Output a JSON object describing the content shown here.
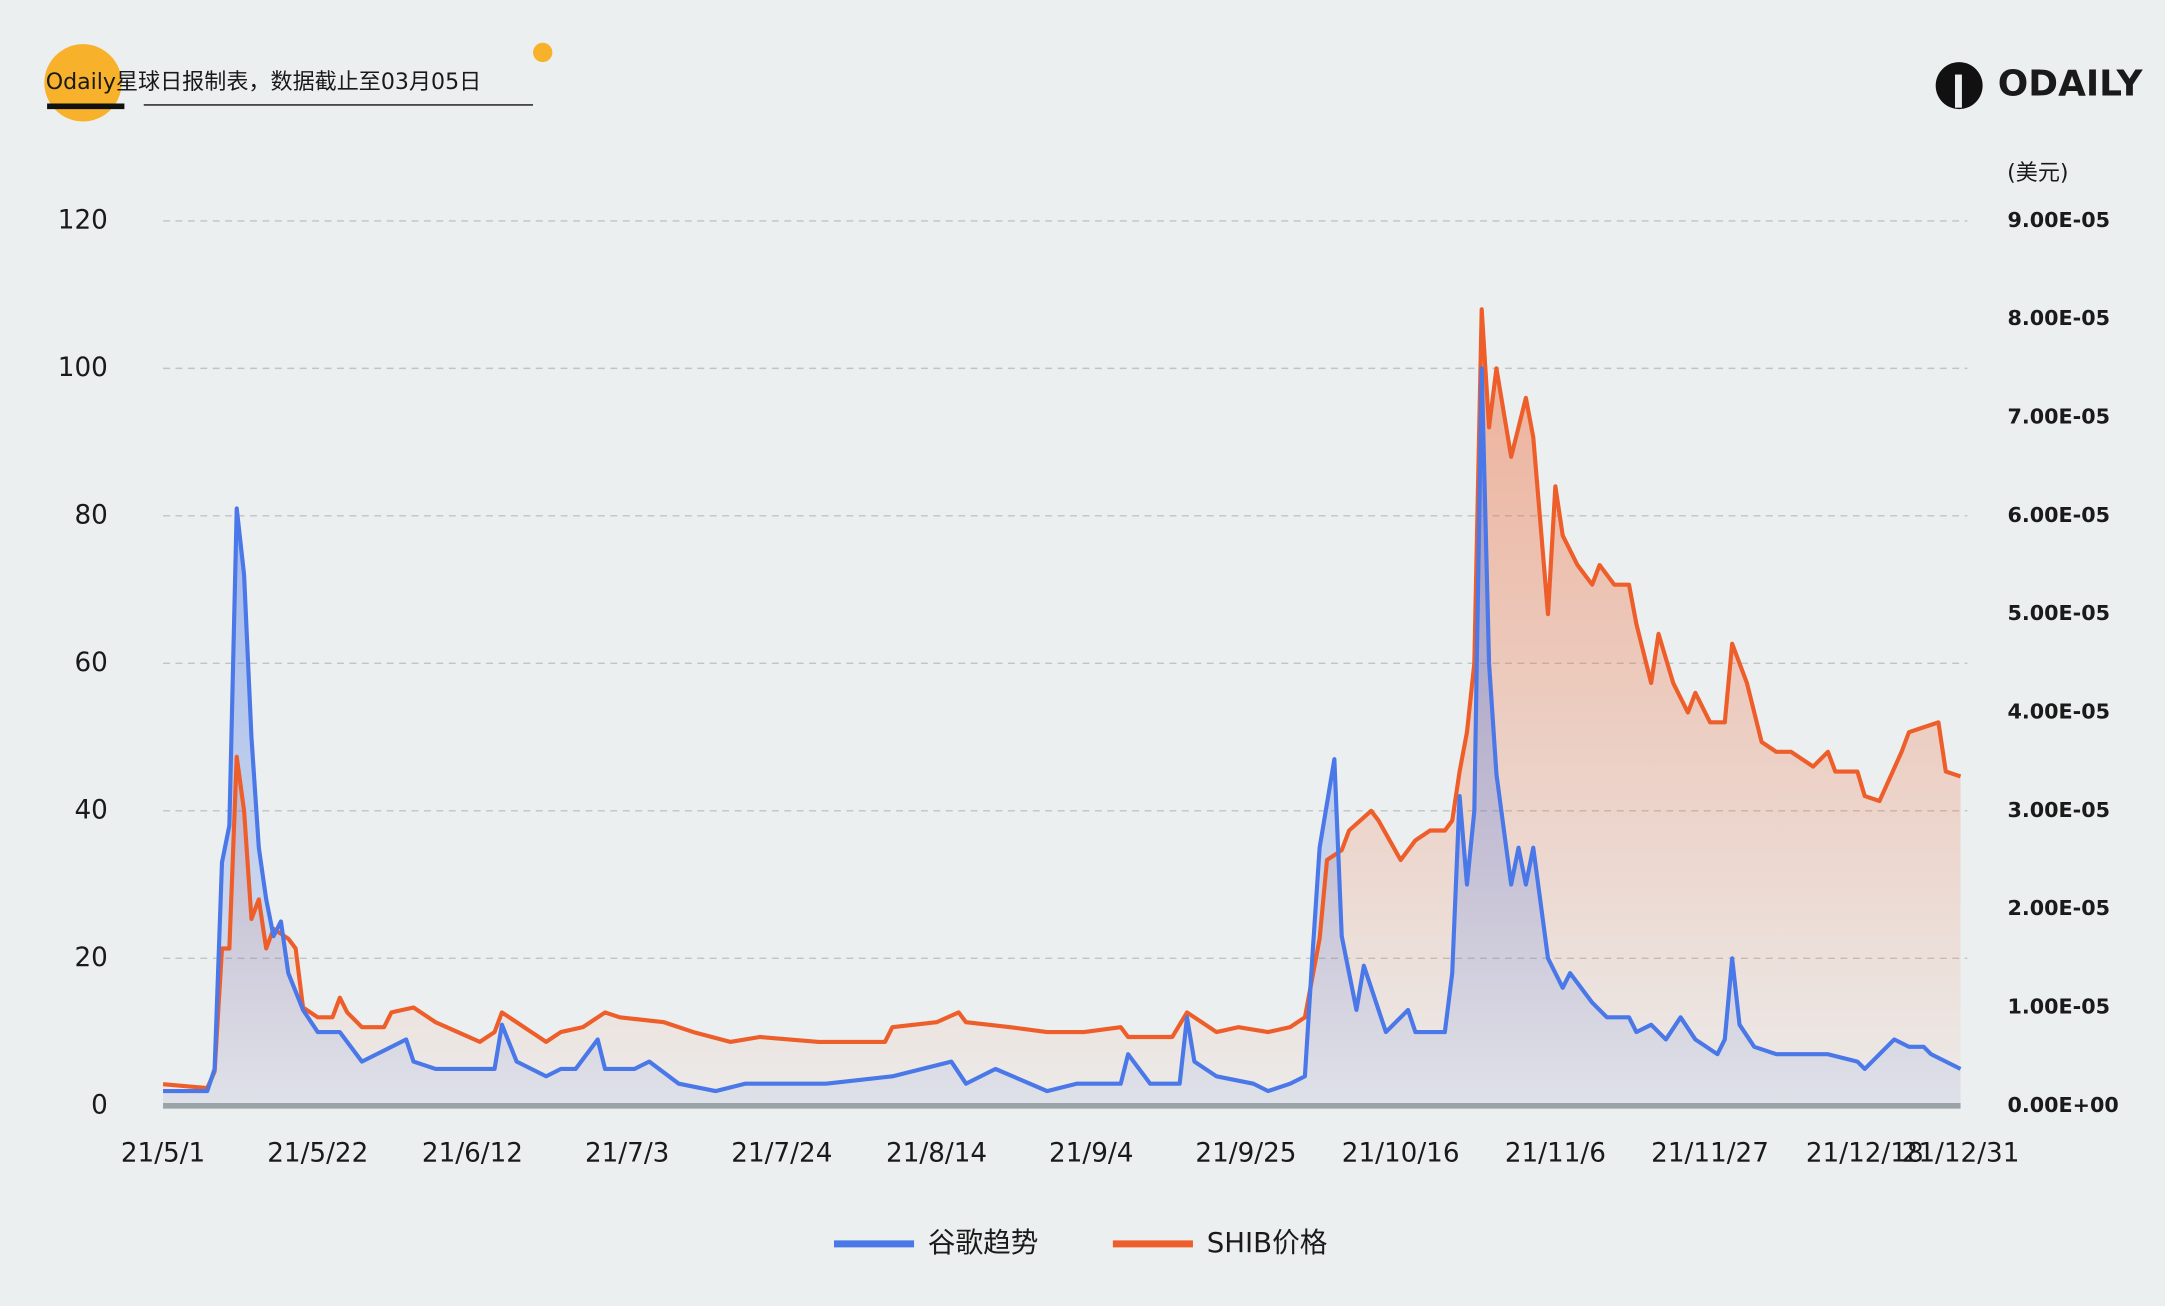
{
  "header": {
    "source": "Odaily星球日报制表，数据截止至03月05日",
    "logo": "ODAILY"
  },
  "chart_data": {
    "type": "line",
    "y2_unit": "(美元)",
    "xlim": [
      "21/5/1",
      "21/12/31"
    ],
    "xticks": [
      "21/5/1",
      "21/5/22",
      "21/6/12",
      "21/7/3",
      "21/7/24",
      "21/8/14",
      "21/9/4",
      "21/9/25",
      "21/10/16",
      "21/11/6",
      "21/11/27",
      "21/12/18",
      "21/12/31"
    ],
    "ylim": [
      0,
      120
    ],
    "yticks": [
      0,
      20,
      40,
      60,
      80,
      100,
      120
    ],
    "y2lim": [
      0,
      9e-05
    ],
    "y2ticks": [
      {
        "value": 0,
        "label": "0.00E+00"
      },
      {
        "value": 1e-05,
        "label": "1.00E-05"
      },
      {
        "value": 2e-05,
        "label": "2.00E-05"
      },
      {
        "value": 3e-05,
        "label": "3.00E-05"
      },
      {
        "value": 4e-05,
        "label": "4.00E-05"
      },
      {
        "value": 5e-05,
        "label": "5.00E-05"
      },
      {
        "value": 6e-05,
        "label": "6.00E-05"
      },
      {
        "value": 7e-05,
        "label": "7.00E-05"
      },
      {
        "value": 8e-05,
        "label": "8.00E-05"
      },
      {
        "value": 9e-05,
        "label": "9.00E-05"
      }
    ],
    "grid": true,
    "legend": "bottom",
    "series": [
      {
        "name": "谷歌趋势",
        "color": "#4a78e8",
        "axis": "y",
        "x": [
          "21/5/1",
          "21/5/7",
          "21/5/8",
          "21/5/9",
          "21/5/10",
          "21/5/11",
          "21/5/12",
          "21/5/13",
          "21/5/14",
          "21/5/15",
          "21/5/16",
          "21/5/17",
          "21/5/18",
          "21/5/20",
          "21/5/22",
          "21/5/25",
          "21/5/28",
          "21/5/30",
          "21/6/3",
          "21/6/4",
          "21/6/7",
          "21/6/12",
          "21/6/15",
          "21/6/16",
          "21/6/18",
          "21/6/22",
          "21/6/24",
          "21/6/26",
          "21/6/29",
          "21/6/30",
          "21/7/4",
          "21/7/6",
          "21/7/10",
          "21/7/15",
          "21/7/19",
          "21/7/30",
          "21/8/8",
          "21/8/16",
          "21/8/18",
          "21/8/22",
          "21/8/29",
          "21/9/2",
          "21/9/8",
          "21/9/9",
          "21/9/12",
          "21/9/16",
          "21/9/17",
          "21/9/18",
          "21/9/21",
          "21/9/26",
          "21/9/28",
          "21/10/1",
          "21/10/3",
          "21/10/4",
          "21/10/5",
          "21/10/7",
          "21/10/8",
          "21/10/10",
          "21/10/11",
          "21/10/13",
          "21/10/14",
          "21/10/17",
          "21/10/18",
          "21/10/21",
          "21/10/22",
          "21/10/23",
          "21/10/24",
          "21/10/25",
          "21/10/26",
          "21/10/27",
          "21/10/28",
          "21/10/29",
          "21/10/31",
          "21/11/1",
          "21/11/2",
          "21/11/3",
          "21/11/5",
          "21/11/7",
          "21/11/8",
          "21/11/11",
          "21/11/13",
          "21/11/16",
          "21/11/17",
          "21/11/19",
          "21/11/21",
          "21/11/23",
          "21/11/25",
          "21/11/28",
          "21/11/29",
          "21/11/30",
          "21/12/1",
          "21/12/3",
          "21/12/6",
          "21/12/10",
          "21/12/13",
          "21/12/17",
          "21/12/18",
          "21/12/20",
          "21/12/22",
          "21/12/24",
          "21/12/26",
          "21/12/27",
          "21/12/29",
          "21/12/31"
        ],
        "values": [
          2,
          2,
          5,
          33,
          38,
          81,
          72,
          50,
          35,
          28,
          23,
          25,
          18,
          13,
          10,
          10,
          6,
          7,
          9,
          6,
          5,
          5,
          5,
          11,
          6,
          4,
          5,
          5,
          9,
          5,
          5,
          6,
          3,
          2,
          3,
          3,
          4,
          6,
          3,
          5,
          2,
          3,
          3,
          7,
          3,
          3,
          12,
          6,
          4,
          3,
          2,
          3,
          4,
          20,
          35,
          47,
          23,
          13,
          19,
          13,
          10,
          13,
          10,
          10,
          10,
          18,
          42,
          30,
          40,
          100,
          60,
          45,
          30,
          35,
          30,
          35,
          20,
          16,
          18,
          14,
          12,
          12,
          10,
          11,
          9,
          12,
          9,
          7,
          9,
          20,
          11,
          8,
          7,
          7,
          7,
          6,
          5,
          7,
          9,
          8,
          8,
          7,
          6,
          5
        ]
      },
      {
        "name": "SHIB价格",
        "color": "#ee5e2a",
        "axis": "y2",
        "x": [
          "21/5/1",
          "21/5/7",
          "21/5/8",
          "21/5/9",
          "21/5/10",
          "21/5/11",
          "21/5/12",
          "21/5/13",
          "21/5/14",
          "21/5/15",
          "21/5/16",
          "21/5/18",
          "21/5/19",
          "21/5/20",
          "21/5/22",
          "21/5/24",
          "21/5/25",
          "21/5/26",
          "21/5/28",
          "21/5/31",
          "21/6/1",
          "21/6/4",
          "21/6/7",
          "21/6/10",
          "21/6/13",
          "21/6/15",
          "21/6/16",
          "21/6/18",
          "21/6/20",
          "21/6/22",
          "21/6/24",
          "21/6/27",
          "21/6/30",
          "21/7/2",
          "21/7/8",
          "21/7/12",
          "21/7/17",
          "21/7/21",
          "21/7/29",
          "21/8/7",
          "21/8/8",
          "21/8/14",
          "21/8/17",
          "21/8/18",
          "21/8/24",
          "21/8/29",
          "21/9/3",
          "21/9/8",
          "21/9/9",
          "21/9/15",
          "21/9/17",
          "21/9/21",
          "21/9/24",
          "21/9/28",
          "21/10/1",
          "21/10/3",
          "21/10/5",
          "21/10/6",
          "21/10/8",
          "21/10/9",
          "21/10/12",
          "21/10/13",
          "21/10/16",
          "21/10/18",
          "21/10/20",
          "21/10/22",
          "21/10/23",
          "21/10/24",
          "21/10/25",
          "21/10/26",
          "21/10/27",
          "21/10/28",
          "21/10/29",
          "21/10/31",
          "21/11/2",
          "21/11/3",
          "21/11/5",
          "21/11/6",
          "21/11/7",
          "21/11/9",
          "21/11/11",
          "21/11/12",
          "21/11/14",
          "21/11/16",
          "21/11/17",
          "21/11/19",
          "21/11/20",
          "21/11/22",
          "21/11/24",
          "21/11/25",
          "21/11/27",
          "21/11/29",
          "21/11/30",
          "21/12/2",
          "21/12/4",
          "21/12/6",
          "21/12/8",
          "21/12/11",
          "21/12/13",
          "21/12/14",
          "21/12/17",
          "21/12/18",
          "21/12/20",
          "21/12/23",
          "21/12/24",
          "21/12/26",
          "21/12/28",
          "21/12/29",
          "21/12/31"
        ],
        "values": [
          2.2e-06,
          1.8e-06,
          3.5e-06,
          1.6e-05,
          1.6e-05,
          3.55e-05,
          3e-05,
          1.9e-05,
          2.1e-05,
          1.6e-05,
          1.8e-05,
          1.7e-05,
          1.6e-05,
          1e-05,
          9e-06,
          9e-06,
          1.1e-05,
          9.5e-06,
          8e-06,
          8e-06,
          9.5e-06,
          1e-05,
          8.5e-06,
          7.5e-06,
          6.5e-06,
          7.5e-06,
          9.5e-06,
          8.5e-06,
          7.5e-06,
          6.5e-06,
          7.5e-06,
          8e-06,
          9.5e-06,
          9e-06,
          8.5e-06,
          7.5e-06,
          6.5e-06,
          7e-06,
          6.5e-06,
          6.5e-06,
          8e-06,
          8.5e-06,
          9.5e-06,
          8.5e-06,
          8e-06,
          7.5e-06,
          7.5e-06,
          8e-06,
          7e-06,
          7e-06,
          9.5e-06,
          7.5e-06,
          8e-06,
          7.5e-06,
          8e-06,
          9e-06,
          1.7e-05,
          2.5e-05,
          2.6e-05,
          2.8e-05,
          3e-05,
          2.9e-05,
          2.5e-05,
          2.7e-05,
          2.8e-05,
          2.8e-05,
          2.9e-05,
          3.4e-05,
          3.8e-05,
          4.5e-05,
          8.1e-05,
          6.9e-05,
          7.5e-05,
          6.6e-05,
          7.2e-05,
          6.8e-05,
          5e-05,
          6.3e-05,
          5.8e-05,
          5.5e-05,
          5.3e-05,
          5.5e-05,
          5.3e-05,
          5.3e-05,
          4.9e-05,
          4.3e-05,
          4.8e-05,
          4.3e-05,
          4e-05,
          4.2e-05,
          3.9e-05,
          3.9e-05,
          4.7e-05,
          4.3e-05,
          3.7e-05,
          3.6e-05,
          3.6e-05,
          3.45e-05,
          3.6e-05,
          3.4e-05,
          3.4e-05,
          3.15e-05,
          3.1e-05,
          3.6e-05,
          3.8e-05,
          3.85e-05,
          3.9e-05,
          3.4e-05,
          3.35e-05
        ]
      }
    ]
  }
}
